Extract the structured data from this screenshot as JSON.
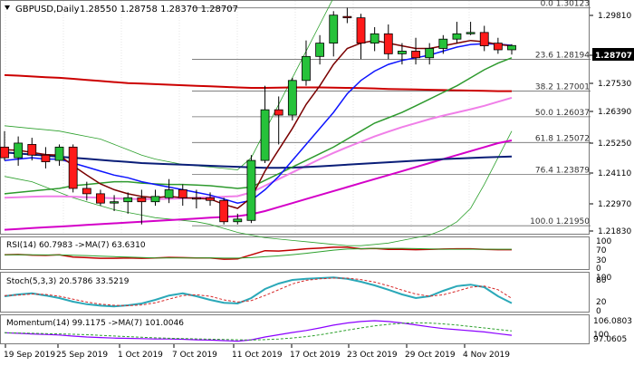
{
  "header": {
    "symbol": "GBPUSD,Daily",
    "ohlc": "1.28550 1.28758 1.28370 1.28707"
  },
  "colors": {
    "bull": "#26c23a",
    "bear": "#ff1a1a",
    "grid": "#e6e6e6",
    "fib": "#6e6e6e",
    "ema_dark_red": "#7a0000",
    "ema_blue": "#0d14ff",
    "ma_green": "#2e9a2e",
    "ma_red": "#cc0000",
    "ma_navy": "#0a1e78",
    "ma_pink": "#f07fe8",
    "ma_magenta": "#d400c8",
    "bollinger": "#2ca02c"
  },
  "price_axis": {
    "current_price": "1.28707",
    "ticks": [
      "1.29810",
      "1.28707",
      "1.27530",
      "1.26390",
      "1.25250",
      "1.24110",
      "1.22970",
      "1.21830"
    ]
  },
  "fib_levels": [
    {
      "label": "0.0 1.30123",
      "value": 1.30123
    },
    {
      "label": "23.6 1.28194",
      "value": 1.28194
    },
    {
      "label": "38.2 1.27001",
      "value": 1.27001
    },
    {
      "label": "50.0 1.26037",
      "value": 1.26037
    },
    {
      "label": "61.8 1.25072",
      "value": 1.25072
    },
    {
      "label": "76.4 1.23879",
      "value": 1.23879
    },
    {
      "label": "100.0 1.21950",
      "value": 1.2195
    }
  ],
  "x_axis": {
    "labels": [
      "19 Sep 2019",
      "25 Sep 2019",
      "1 Oct 2019",
      "7 Oct 2019",
      "11 Oct 2019",
      "17 Oct 2019",
      "23 Oct 2019",
      "29 Oct 2019",
      "4 Nov 2019"
    ]
  },
  "indicators": {
    "rsi": {
      "label": "RSI(14) 60.7983  ->MA(7) 63.6310",
      "ticks": [
        "100",
        "70",
        "30",
        "0"
      ]
    },
    "stoch": {
      "label": "Stoch(5,3,3) 20.5786 33.5219",
      "ticks": [
        "100",
        "80",
        "20",
        "0"
      ]
    },
    "momentum": {
      "label": "Momentum(14) 99.1175  ->MA(7) 101.0046",
      "ticks": [
        "106.0803",
        "100",
        "97.0605"
      ]
    }
  },
  "chart_data": {
    "type": "candlestick",
    "symbol": "GBPUSD",
    "timeframe": "Daily",
    "ylim": [
      1.2165,
      1.3035
    ],
    "candles": [
      {
        "o": 1.249,
        "h": 1.255,
        "l": 1.244,
        "c": 1.245
      },
      {
        "o": 1.245,
        "h": 1.253,
        "l": 1.242,
        "c": 1.2505
      },
      {
        "o": 1.25,
        "h": 1.2525,
        "l": 1.244,
        "c": 1.246
      },
      {
        "o": 1.246,
        "h": 1.249,
        "l": 1.241,
        "c": 1.2435
      },
      {
        "o": 1.244,
        "h": 1.25,
        "l": 1.242,
        "c": 1.249
      },
      {
        "o": 1.249,
        "h": 1.25,
        "l": 1.232,
        "c": 1.2335
      },
      {
        "o": 1.2335,
        "h": 1.236,
        "l": 1.229,
        "c": 1.2315
      },
      {
        "o": 1.2315,
        "h": 1.233,
        "l": 1.227,
        "c": 1.228
      },
      {
        "o": 1.228,
        "h": 1.231,
        "l": 1.225,
        "c": 1.2285
      },
      {
        "o": 1.2285,
        "h": 1.232,
        "l": 1.224,
        "c": 1.23
      },
      {
        "o": 1.23,
        "h": 1.233,
        "l": 1.22,
        "c": 1.2285
      },
      {
        "o": 1.2285,
        "h": 1.233,
        "l": 1.227,
        "c": 1.2305
      },
      {
        "o": 1.23,
        "h": 1.237,
        "l": 1.228,
        "c": 1.233
      },
      {
        "o": 1.233,
        "h": 1.235,
        "l": 1.227,
        "c": 1.23
      },
      {
        "o": 1.23,
        "h": 1.233,
        "l": 1.226,
        "c": 1.2295
      },
      {
        "o": 1.23,
        "h": 1.232,
        "l": 1.227,
        "c": 1.229
      },
      {
        "o": 1.229,
        "h": 1.23,
        "l": 1.22,
        "c": 1.221
      },
      {
        "o": 1.221,
        "h": 1.224,
        "l": 1.22,
        "c": 1.222
      },
      {
        "o": 1.2215,
        "h": 1.246,
        "l": 1.2205,
        "c": 1.244
      },
      {
        "o": 1.244,
        "h": 1.272,
        "l": 1.243,
        "c": 1.263
      },
      {
        "o": 1.263,
        "h": 1.268,
        "l": 1.25,
        "c": 1.261
      },
      {
        "o": 1.261,
        "h": 1.275,
        "l": 1.259,
        "c": 1.274
      },
      {
        "o": 1.274,
        "h": 1.289,
        "l": 1.272,
        "c": 1.283
      },
      {
        "o": 1.283,
        "h": 1.291,
        "l": 1.28,
        "c": 1.288
      },
      {
        "o": 1.288,
        "h": 1.3,
        "l": 1.283,
        "c": 1.2985
      },
      {
        "o": 1.298,
        "h": 1.3013,
        "l": 1.2955,
        "c": 1.2975
      },
      {
        "o": 1.2975,
        "h": 1.299,
        "l": 1.282,
        "c": 1.288
      },
      {
        "o": 1.288,
        "h": 1.294,
        "l": 1.285,
        "c": 1.2915
      },
      {
        "o": 1.2915,
        "h": 1.295,
        "l": 1.282,
        "c": 1.284
      },
      {
        "o": 1.284,
        "h": 1.288,
        "l": 1.28,
        "c": 1.285
      },
      {
        "o": 1.285,
        "h": 1.29,
        "l": 1.28,
        "c": 1.2825
      },
      {
        "o": 1.2825,
        "h": 1.288,
        "l": 1.28,
        "c": 1.286
      },
      {
        "o": 1.286,
        "h": 1.291,
        "l": 1.284,
        "c": 1.2895
      },
      {
        "o": 1.2895,
        "h": 1.296,
        "l": 1.288,
        "c": 1.2915
      },
      {
        "o": 1.2915,
        "h": 1.296,
        "l": 1.291,
        "c": 1.292
      },
      {
        "o": 1.292,
        "h": 1.2945,
        "l": 1.285,
        "c": 1.287
      },
      {
        "o": 1.288,
        "h": 1.29,
        "l": 1.284,
        "c": 1.2855
      },
      {
        "o": 1.2855,
        "h": 1.2876,
        "l": 1.2837,
        "c": 1.2871
      }
    ],
    "overlays": {
      "ema_dark_red": [
        1.248,
        1.2478,
        1.247,
        1.2462,
        1.246,
        1.242,
        1.2385,
        1.2352,
        1.233,
        1.2315,
        1.2305,
        1.23,
        1.2305,
        1.23,
        1.2298,
        1.2295,
        1.2275,
        1.226,
        1.23,
        1.24,
        1.248,
        1.256,
        1.265,
        1.272,
        1.28,
        1.286,
        1.288,
        1.289,
        1.288,
        1.287,
        1.286,
        1.286,
        1.287,
        1.288,
        1.289,
        1.2885,
        1.2875,
        1.287
      ],
      "ema_blue": [
        1.244,
        1.2445,
        1.245,
        1.2445,
        1.2445,
        1.243,
        1.2415,
        1.24,
        1.2385,
        1.2375,
        1.236,
        1.235,
        1.234,
        1.233,
        1.232,
        1.231,
        1.2295,
        1.228,
        1.229,
        1.233,
        1.238,
        1.244,
        1.25,
        1.256,
        1.262,
        1.269,
        1.274,
        1.2775,
        1.28,
        1.2815,
        1.2825,
        1.2835,
        1.285,
        1.2865,
        1.2875,
        1.2878,
        1.2876,
        1.2872
      ],
      "ma_green": [
        1.2315,
        1.232,
        1.2325,
        1.233,
        1.2335,
        1.2345,
        1.235,
        1.2355,
        1.236,
        1.236,
        1.2355,
        1.2352,
        1.235,
        1.235,
        1.2348,
        1.2345,
        1.234,
        1.2335,
        1.234,
        1.2365,
        1.239,
        1.2415,
        1.244,
        1.2465,
        1.249,
        1.252,
        1.255,
        1.258,
        1.26,
        1.262,
        1.2645,
        1.267,
        1.2695,
        1.272,
        1.275,
        1.278,
        1.2805,
        1.2825
      ],
      "ma_red_flat": [
        1.276,
        1.2758,
        1.2755,
        1.2752,
        1.275,
        1.2746,
        1.2742,
        1.2738,
        1.2734,
        1.273,
        1.2728,
        1.2726,
        1.2724,
        1.2722,
        1.272,
        1.2718,
        1.2716,
        1.2714,
        1.2712,
        1.2712,
        1.2713,
        1.2714,
        1.2714,
        1.2714,
        1.2713,
        1.2712,
        1.2711,
        1.271,
        1.2708,
        1.2707,
        1.2706,
        1.2705,
        1.2704,
        1.2703,
        1.2702,
        1.2701,
        1.27,
        1.27
      ],
      "ma_navy": [
        1.247,
        1.2466,
        1.2462,
        1.2458,
        1.2454,
        1.245,
        1.2446,
        1.2442,
        1.2438,
        1.2434,
        1.243,
        1.2428,
        1.2426,
        1.2424,
        1.2422,
        1.242,
        1.2418,
        1.2416,
        1.2414,
        1.2412,
        1.2412,
        1.2413,
        1.2415,
        1.2418,
        1.2421,
        1.2424,
        1.2427,
        1.243,
        1.2433,
        1.2436,
        1.2439,
        1.2442,
        1.2445,
        1.2447,
        1.2449,
        1.2451,
        1.2453,
        1.2455
      ],
      "ma_pink": [
        1.23,
        1.2302,
        1.2304,
        1.2305,
        1.2305,
        1.2304,
        1.2302,
        1.23,
        1.2298,
        1.2296,
        1.2295,
        1.2295,
        1.2296,
        1.2298,
        1.23,
        1.2302,
        1.2304,
        1.2306,
        1.232,
        1.2345,
        1.237,
        1.2395,
        1.242,
        1.2445,
        1.2468,
        1.249,
        1.251,
        1.253,
        1.2548,
        1.2565,
        1.258,
        1.2595,
        1.2608,
        1.262,
        1.2632,
        1.2645,
        1.266,
        1.2675
      ],
      "ma_magenta": [
        1.218,
        1.2183,
        1.2186,
        1.2189,
        1.2192,
        1.2195,
        1.2198,
        1.2201,
        1.2204,
        1.2207,
        1.221,
        1.2213,
        1.2216,
        1.2219,
        1.2222,
        1.2225,
        1.2228,
        1.2231,
        1.2238,
        1.225,
        1.2265,
        1.228,
        1.2295,
        1.231,
        1.2325,
        1.234,
        1.2355,
        1.237,
        1.2385,
        1.24,
        1.2415,
        1.243,
        1.2445,
        1.246,
        1.2475,
        1.249,
        1.2505,
        1.2515
      ],
      "bb_upper": [
        1.257,
        1.2565,
        1.256,
        1.2555,
        1.255,
        1.254,
        1.253,
        1.252,
        1.25,
        1.248,
        1.246,
        1.2445,
        1.2435,
        1.2425,
        1.242,
        1.2415,
        1.241,
        1.2405,
        1.245,
        1.255,
        1.265,
        1.275,
        1.285,
        1.295,
        1.305,
        1.315,
        1.32,
        1.32,
        1.319,
        1.318,
        1.317,
        1.3165,
        1.316,
        1.3155,
        1.315,
        1.314,
        1.312,
        1.31
      ],
      "bb_lower": [
        1.238,
        1.237,
        1.236,
        1.234,
        1.232,
        1.23,
        1.2285,
        1.227,
        1.2255,
        1.2245,
        1.2235,
        1.2225,
        1.222,
        1.2215,
        1.221,
        1.22,
        1.2185,
        1.217,
        1.216,
        1.215,
        1.2145,
        1.214,
        1.2135,
        1.213,
        1.2125,
        1.212,
        1.212,
        1.2125,
        1.213,
        1.214,
        1.215,
        1.216,
        1.218,
        1.221,
        1.226,
        1.235,
        1.245,
        1.255
      ]
    },
    "rsi_values": [
      45,
      46,
      44,
      43,
      45,
      38,
      36,
      34,
      34,
      35,
      34,
      35,
      37,
      36,
      35,
      35,
      31,
      32,
      45,
      58,
      57,
      60,
      64,
      66,
      69,
      69,
      64,
      65,
      62,
      62,
      61,
      62,
      63,
      64,
      64,
      62,
      61,
      61
    ],
    "momentum_values": [
      100.5,
      100.3,
      100.1,
      99.9,
      99.7,
      99.3,
      99.0,
      98.8,
      98.6,
      98.5,
      98.4,
      98.3,
      98.3,
      98.2,
      98.0,
      97.9,
      97.7,
      97.5,
      98.0,
      99.0,
      99.8,
      100.6,
      101.3,
      102.2,
      103.2,
      104.0,
      104.5,
      104.8,
      104.5,
      104.0,
      103.3,
      102.6,
      102.0,
      101.6,
      101.2,
      100.8,
      100.2,
      99.6
    ],
    "stoch_k": [
      40,
      45,
      48,
      42,
      35,
      25,
      18,
      14,
      12,
      15,
      20,
      30,
      42,
      48,
      40,
      30,
      22,
      20,
      35,
      60,
      75,
      85,
      88,
      90,
      92,
      88,
      80,
      70,
      58,
      45,
      35,
      40,
      55,
      68,
      72,
      65,
      40,
      21
    ],
    "stoch_d": [
      42,
      43,
      46,
      45,
      40,
      32,
      24,
      18,
      15,
      14,
      16,
      22,
      32,
      42,
      44,
      40,
      30,
      24,
      28,
      42,
      58,
      74,
      84,
      88,
      90,
      90,
      86,
      79,
      69,
      57,
      46,
      40,
      44,
      54,
      65,
      68,
      58,
      34
    ]
  }
}
